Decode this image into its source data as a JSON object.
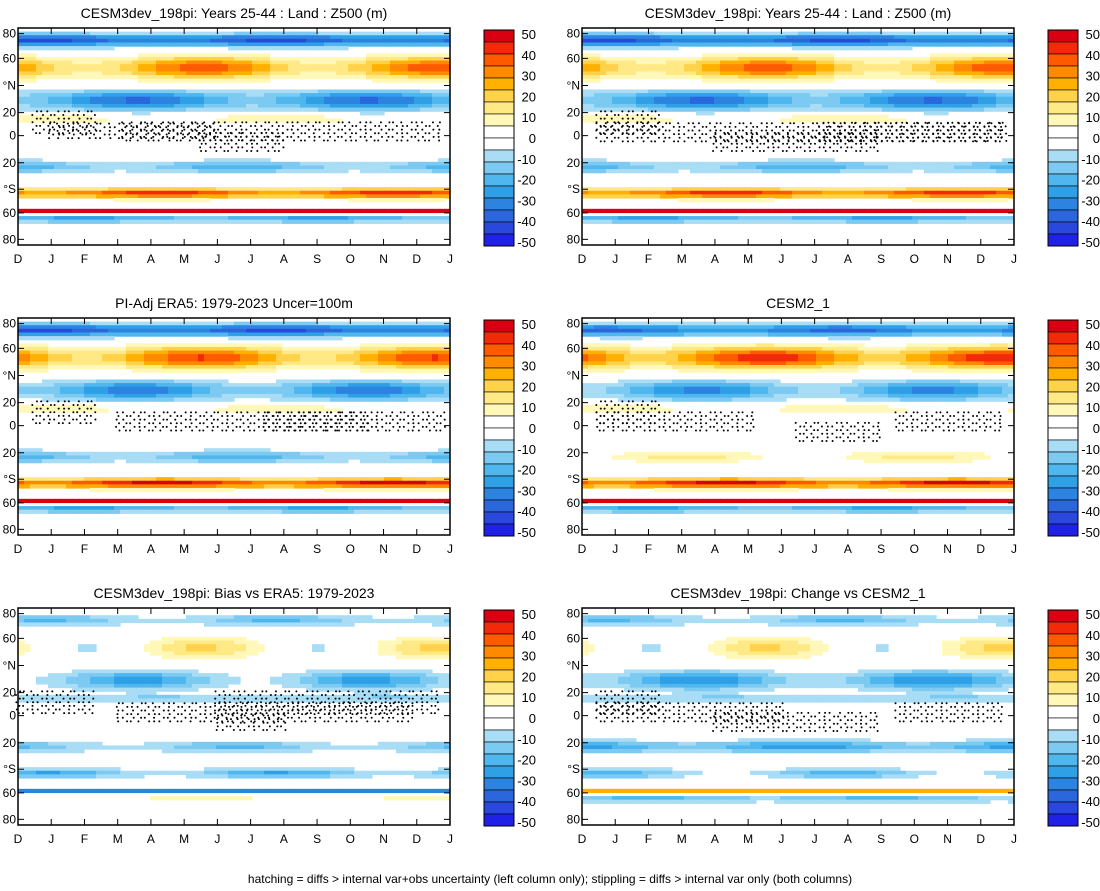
{
  "chart_data": {
    "type": "heatmap",
    "variable": "Z500 (m)",
    "x_tick_labels": [
      "D",
      "J",
      "F",
      "M",
      "A",
      "M",
      "J",
      "J",
      "A",
      "S",
      "O",
      "N",
      "D",
      "J"
    ],
    "y_tick_labels": [
      "80",
      "60",
      "°N",
      "20",
      "0",
      "20",
      "°S",
      "60",
      "80"
    ],
    "colorbar_labels": [
      "50",
      "40",
      "30",
      "20",
      "10",
      "0",
      "-10",
      "-20",
      "-30",
      "-40",
      "-50"
    ],
    "colorbar_colors": [
      "#d90012",
      "#f22a0a",
      "#ff5a00",
      "#ff8a00",
      "#ffb000",
      "#ffd24a",
      "#ffe985",
      "#fff8b8",
      "#ffffff",
      "#ffffff",
      "#a9dcf5",
      "#7ccaf2",
      "#4fb6ee",
      "#2f9fe6",
      "#2c83e0",
      "#2b66dd",
      "#2a48dc",
      "#1f22e6"
    ],
    "panels": [
      {
        "title": "CESM3dev_198pi: Years 25-44 : Land : Z500 (m)",
        "bands": [
          {
            "lat": 80,
            "v": -35,
            "amp": 6,
            "w": 5
          },
          {
            "lat": 57,
            "v": 25,
            "amp": 12,
            "w": 9
          },
          {
            "lat": 30,
            "v": -25,
            "amp": 10,
            "w": 8
          },
          {
            "lat": 15,
            "v": 8,
            "amp": 3,
            "w": 3
          },
          {
            "lat": -25,
            "v": -15,
            "amp": 6,
            "w": 5
          },
          {
            "lat": -47,
            "v": 35,
            "amp": 8,
            "w": 4
          },
          {
            "lat": -62,
            "v": 50,
            "amp": 0,
            "w": 1.5
          },
          {
            "lat": -68,
            "v": -20,
            "amp": 4,
            "w": 3
          }
        ],
        "stipple_boxes": [
          [
            1,
            6,
            4.7,
            0
          ],
          [
            3.2,
            12.8,
            4.7,
            0.5
          ],
          [
            0.5,
            2.3,
            12,
            0.8
          ],
          [
            5.5,
            8.1,
            -4,
            0.5
          ]
        ]
      },
      {
        "title": "CESM3dev_198pi: Years 25-44 : Land : Z500 (m)",
        "bands": [
          {
            "lat": 80,
            "v": -35,
            "amp": 6,
            "w": 5
          },
          {
            "lat": 57,
            "v": 25,
            "amp": 12,
            "w": 9
          },
          {
            "lat": 30,
            "v": -25,
            "amp": 10,
            "w": 8
          },
          {
            "lat": 15,
            "v": 8,
            "amp": 3,
            "w": 3
          },
          {
            "lat": -25,
            "v": -15,
            "amp": 6,
            "w": 5
          },
          {
            "lat": -47,
            "v": 35,
            "amp": 8,
            "w": 4
          },
          {
            "lat": -62,
            "v": 50,
            "amp": 0,
            "w": 1.5
          },
          {
            "lat": -68,
            "v": -20,
            "amp": 4,
            "w": 3
          }
        ],
        "stipple_boxes": [
          [
            0.5,
            12.8,
            4,
            0.5
          ],
          [
            7.2,
            12.8,
            4,
            0.4
          ],
          [
            4,
            9,
            -4,
            0.5
          ],
          [
            0.5,
            2.3,
            12,
            0.8
          ]
        ]
      },
      {
        "title": "PI-Adj ERA5: 1979-2023 Uncer=100m",
        "bands": [
          {
            "lat": 80,
            "v": -35,
            "amp": 6,
            "w": 5
          },
          {
            "lat": 57,
            "v": 28,
            "amp": 12,
            "w": 9
          },
          {
            "lat": 30,
            "v": -22,
            "amp": 10,
            "w": 8
          },
          {
            "lat": 15,
            "v": 8,
            "amp": 3,
            "w": 3
          },
          {
            "lat": -25,
            "v": -15,
            "amp": 6,
            "w": 5
          },
          {
            "lat": -47,
            "v": 40,
            "amp": 8,
            "w": 4
          },
          {
            "lat": -62,
            "v": 50,
            "amp": 0,
            "w": 1.5
          },
          {
            "lat": -68,
            "v": -20,
            "amp": 4,
            "w": 3
          }
        ],
        "stipple_boxes": [
          [
            3,
            10.5,
            4.7,
            0.5
          ],
          [
            7.5,
            12.8,
            4.7,
            0.5
          ],
          [
            0.5,
            2.3,
            12,
            0.8
          ]
        ]
      },
      {
        "title": "CESM2_1",
        "bands": [
          {
            "lat": 80,
            "v": -30,
            "amp": 6,
            "w": 5
          },
          {
            "lat": 57,
            "v": 32,
            "amp": 12,
            "w": 9
          },
          {
            "lat": 30,
            "v": -20,
            "amp": 10,
            "w": 8
          },
          {
            "lat": 15,
            "v": 8,
            "amp": 3,
            "w": 3
          },
          {
            "lat": -25,
            "v": 8,
            "amp": 6,
            "w": 5
          },
          {
            "lat": -47,
            "v": 40,
            "amp": 8,
            "w": 4
          },
          {
            "lat": -62,
            "v": 50,
            "amp": 0,
            "w": 1.5
          },
          {
            "lat": -68,
            "v": -20,
            "amp": 4,
            "w": 3
          }
        ],
        "stipple_boxes": [
          [
            0.5,
            5.2,
            4.7,
            0.5
          ],
          [
            9.5,
            12.8,
            4.7,
            0.5
          ],
          [
            0.5,
            2.3,
            12,
            0.8
          ],
          [
            6.5,
            9.1,
            -4,
            0.5
          ]
        ]
      },
      {
        "title": "CESM3dev_198pi: Bias vs ERA5: 1979-2023",
        "bands": [
          {
            "lat": 80,
            "v": -12,
            "amp": 6,
            "w": 5
          },
          {
            "lat": 57,
            "v": 6,
            "amp": 12,
            "w": 9
          },
          {
            "lat": 30,
            "v": -15,
            "amp": 10,
            "w": 8
          },
          {
            "lat": 15,
            "v": -10,
            "amp": 3,
            "w": 3
          },
          {
            "lat": -25,
            "v": -12,
            "amp": 6,
            "w": 5
          },
          {
            "lat": -47,
            "v": -15,
            "amp": 8,
            "w": 4
          },
          {
            "lat": -62,
            "v": -35,
            "amp": 0,
            "w": 1.5
          },
          {
            "lat": -68,
            "v": 5,
            "amp": 4,
            "w": 3
          }
        ],
        "stipple_boxes": [
          [
            3,
            12,
            4,
            0.5
          ],
          [
            0,
            2.2,
            12,
            0.8
          ],
          [
            6,
            12.8,
            12,
            0.8
          ],
          [
            6,
            8,
            -4,
            0.3
          ]
        ]
      },
      {
        "title": "CESM3dev_198pi: Change vs CESM2_1",
        "bands": [
          {
            "lat": 80,
            "v": -12,
            "amp": 6,
            "w": 5
          },
          {
            "lat": 57,
            "v": 6,
            "amp": 12,
            "w": 9
          },
          {
            "lat": 30,
            "v": -18,
            "amp": 10,
            "w": 8
          },
          {
            "lat": 15,
            "v": -10,
            "amp": 3,
            "w": 3
          },
          {
            "lat": -25,
            "v": -20,
            "amp": 6,
            "w": 5
          },
          {
            "lat": -47,
            "v": -12,
            "amp": 8,
            "w": 4
          },
          {
            "lat": -62,
            "v": 30,
            "amp": 0,
            "w": 1.5
          },
          {
            "lat": -68,
            "v": -15,
            "amp": 4,
            "w": 3
          }
        ],
        "stipple_boxes": [
          [
            0.5,
            6,
            4,
            0.5
          ],
          [
            9.5,
            12.8,
            4,
            0.5
          ],
          [
            0.5,
            2.3,
            12,
            0.8
          ],
          [
            4,
            9,
            -4,
            0.5
          ]
        ]
      }
    ]
  },
  "footnote": "hatching = diffs > internal var+obs uncertainty (left column only); stippling = diffs > internal var only (both columns)"
}
